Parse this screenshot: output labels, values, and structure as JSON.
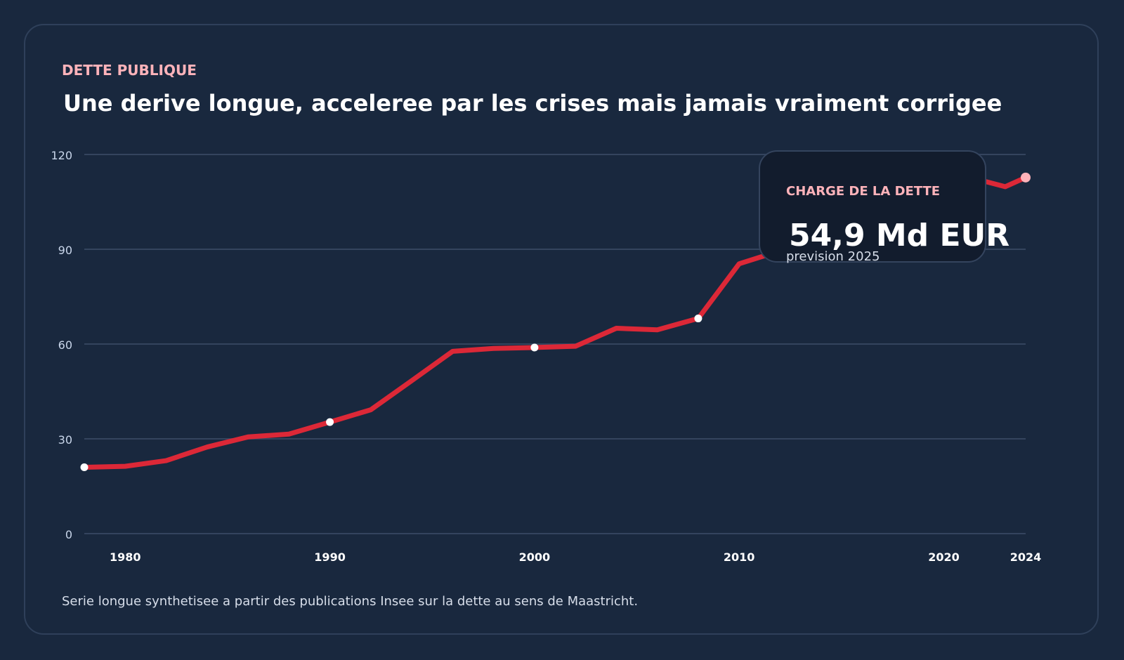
{
  "kicker": "DETTE PUBLIQUE",
  "title": "Une derive longue, acceleree par les crises mais jamais vraiment corrigee",
  "footnote": "Serie longue synthetisee a partir des publications Insee sur la dette au sens de Maastricht.",
  "tooltip": {
    "label": "CHARGE DE LA DETTE",
    "value": "54,9 Md EUR",
    "sub": "prevision 2025"
  },
  "colors": {
    "line": "#dc2837",
    "marker": "#ffffff",
    "last_marker": "#ffb3ba",
    "grid": "#34445e"
  },
  "chart_data": {
    "type": "line",
    "title": "",
    "xlabel": "",
    "ylabel": "",
    "xlim": [
      1978,
      2024
    ],
    "ylim": [
      0,
      120
    ],
    "yticks": [
      0,
      30,
      60,
      90,
      120
    ],
    "xticks": [
      1980,
      1990,
      2000,
      2010,
      2020,
      2024
    ],
    "grid": true,
    "x": [
      1978,
      1980,
      1982,
      1984,
      1986,
      1988,
      1990,
      1992,
      1994,
      1996,
      1998,
      2000,
      2002,
      2004,
      2006,
      2008,
      2010,
      2012,
      2014,
      2016,
      2018,
      2020,
      2022,
      2023,
      2024
    ],
    "values": [
      21.0,
      21.3,
      23.1,
      27.4,
      30.6,
      31.5,
      35.3,
      39.2,
      48.4,
      57.7,
      58.6,
      58.9,
      59.3,
      65.0,
      64.5,
      68.1,
      85.4,
      89.5,
      95.0,
      98.0,
      98.0,
      115.0,
      111.5,
      109.8,
      112.7
    ],
    "highlighted_points": [
      1978,
      1990,
      2000,
      2008,
      2024
    ]
  }
}
